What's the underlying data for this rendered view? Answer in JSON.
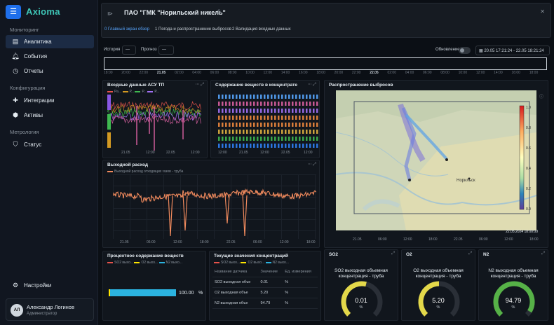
{
  "app": {
    "logo": "Axioma",
    "menu_icon": "hamburger-icon"
  },
  "sidebar": {
    "sections": [
      {
        "label": "Мониторинг"
      },
      {
        "label": "Конфигурация"
      },
      {
        "label": "Метрология"
      }
    ],
    "items": [
      {
        "label": "Аналитика",
        "icon": "dashboard-icon",
        "active": true
      },
      {
        "label": "События",
        "icon": "bell-icon"
      },
      {
        "label": "Отчеты",
        "icon": "clock-icon"
      },
      {
        "label": "Интеграции",
        "icon": "puzzle-icon"
      },
      {
        "label": "Активы",
        "icon": "cube-icon"
      },
      {
        "label": "Статус",
        "icon": "shield-icon"
      },
      {
        "label": "Настройки",
        "icon": "gear-icon"
      }
    ],
    "user": {
      "initials": "АЛ",
      "name": "Александр Логинов",
      "role": "Администратор"
    }
  },
  "header": {
    "title": "ПАО \"ГМК \"Норильский никель\"",
    "tabs": [
      "0 Главный экран обзор",
      "1 Погода и распространение выбросов",
      "2 Валидация входных данных"
    ]
  },
  "controls": {
    "history_label": "История",
    "history_value": "—",
    "forecast_label": "Прогноз",
    "forecast_value": "—",
    "refresh_label": "Обновление",
    "time_range": "20.05 17:21:24 - 22.05 18:21:24"
  },
  "timeline_ticks": [
    "18:00",
    "20:00",
    "22:00",
    "21.05",
    "02:00",
    "04:00",
    "06:00",
    "08:00",
    "10:00",
    "12:00",
    "14:00",
    "16:00",
    "18:00",
    "20:00",
    "22:00",
    "22.05",
    "02:00",
    "04:00",
    "06:00",
    "08:00",
    "10:00",
    "12:00",
    "14:00",
    "16:00",
    "18:00"
  ],
  "panels": {
    "input": {
      "title": "Входные данные АСУ ТП",
      "legend": [
        "Ра...",
        "Р... ",
        "Р...",
        "Р..."
      ],
      "ticks": [
        "21.05",
        "12:00",
        "22.05",
        "12:00"
      ],
      "colors": [
        "#e5534b",
        "#d29922",
        "#3fb950",
        "#a371f7",
        "#db61a2"
      ]
    },
    "content": {
      "title": "Содержание веществ в концентрате",
      "ticks": [
        "12:00",
        "21.05",
        "12:00",
        "22.05",
        "12:00"
      ]
    },
    "map": {
      "title": "Распространение выбросов",
      "timestamp": "22.05.2024 18:00:00",
      "city_label": "Норильск",
      "scale": [
        "1.0",
        "0.8",
        "0.6",
        "0.4",
        "0.2",
        "0.0"
      ],
      "ticks": [
        "21.05",
        "06:00",
        "12:00",
        "18:00",
        "22.05",
        "06:00",
        "12:00",
        "18:00"
      ]
    },
    "flow": {
      "title": "Выходной расход",
      "legend": "Выходной расход отходящих газов - труба",
      "ticks": [
        "21.05",
        "06:00",
        "12:00",
        "18:00",
        "22.05",
        "06:00",
        "12:00",
        "18:00"
      ]
    },
    "percent": {
      "title": "Процентное содержание веществ",
      "legend": [
        "SO2 выхо...",
        "O2 выхо...",
        "N2 выхо..."
      ],
      "legend_colors": [
        "#e5534b",
        "#ffe600",
        "#2bb3e0"
      ],
      "value": "100.00",
      "unit": "%"
    },
    "current": {
      "title": "Текущие значения концентраций",
      "legend": [
        "SO2 выхо...",
        "O2 выхо...",
        "N2 выхо..."
      ],
      "headers": [
        "Название датчика",
        "Значение",
        "Ед. измерения"
      ],
      "rows": [
        [
          "SO2 выходная объе",
          "0.01",
          "%"
        ],
        [
          "O2 выходная объе",
          "5.20",
          "%"
        ],
        [
          "N2 выходная объе",
          "94.79",
          "%"
        ]
      ]
    },
    "gauges": [
      {
        "panel": "SO2",
        "title": "SO2 выходная объемная концентрация - труба",
        "value": "0.01",
        "unit": "%",
        "fraction": 0.55,
        "color": "#e3d84a"
      },
      {
        "panel": "O2",
        "title": "O2 выходная объемная концентрация - труба",
        "value": "5.20",
        "unit": "%",
        "fraction": 0.5,
        "color": "#e3d84a"
      },
      {
        "panel": "N2",
        "title": "N2 выходная объемная концентрация - труба",
        "value": "94.79",
        "unit": "%",
        "fraction": 0.95,
        "color": "#56b147"
      }
    ]
  }
}
